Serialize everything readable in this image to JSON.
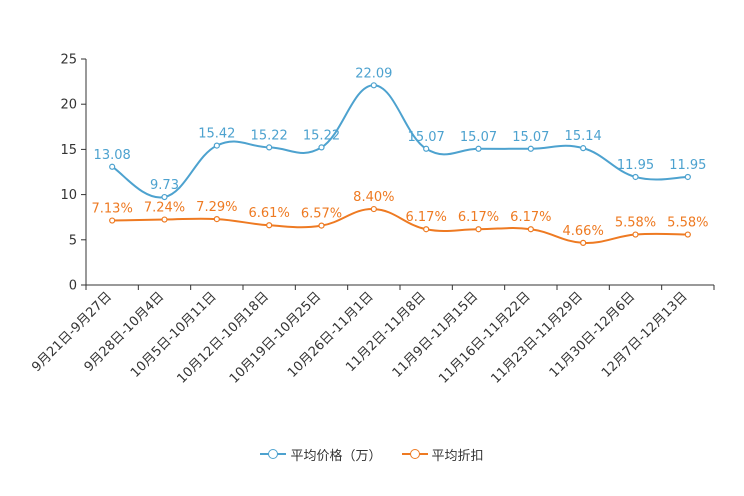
{
  "chart_data": {
    "type": "line",
    "categories": [
      "9月21日-9月27日",
      "9月28日-10月4日",
      "10月5日-10月11日",
      "10月12日-10月18日",
      "10月19日-10月25日",
      "10月26日-11月1日",
      "11月2日-11月8日",
      "11月9日-11月15日",
      "11月16日-11月22日",
      "11月23日-11月29日",
      "11月30日-12月6日",
      "12月7日-12月13日"
    ],
    "ylim": [
      0,
      25
    ],
    "yticks": [
      "0",
      "5",
      "10",
      "15",
      "20",
      "25"
    ],
    "series": [
      {
        "name": "平均价格（万）",
        "color": "#4da2cf",
        "values": [
          13.08,
          9.73,
          15.42,
          15.22,
          15.22,
          22.09,
          15.07,
          15.07,
          15.07,
          15.14,
          11.95,
          11.95
        ],
        "labels": [
          "13.08",
          "9.73",
          "15.42",
          "15.22",
          "15.22",
          "22.09",
          "15.07",
          "15.07",
          "15.07",
          "15.14",
          "11.95",
          "11.95"
        ]
      },
      {
        "name": "平均折扣",
        "color": "#ee7a22",
        "values": [
          7.13,
          7.24,
          7.29,
          6.61,
          6.57,
          8.4,
          6.17,
          6.17,
          6.17,
          4.66,
          5.58,
          5.58
        ],
        "labels": [
          "7.13%",
          "7.24%",
          "7.29%",
          "6.61%",
          "6.57%",
          "8.40%",
          "6.17%",
          "6.17%",
          "6.17%",
          "4.66%",
          "5.58%",
          "5.58%"
        ]
      }
    ]
  }
}
